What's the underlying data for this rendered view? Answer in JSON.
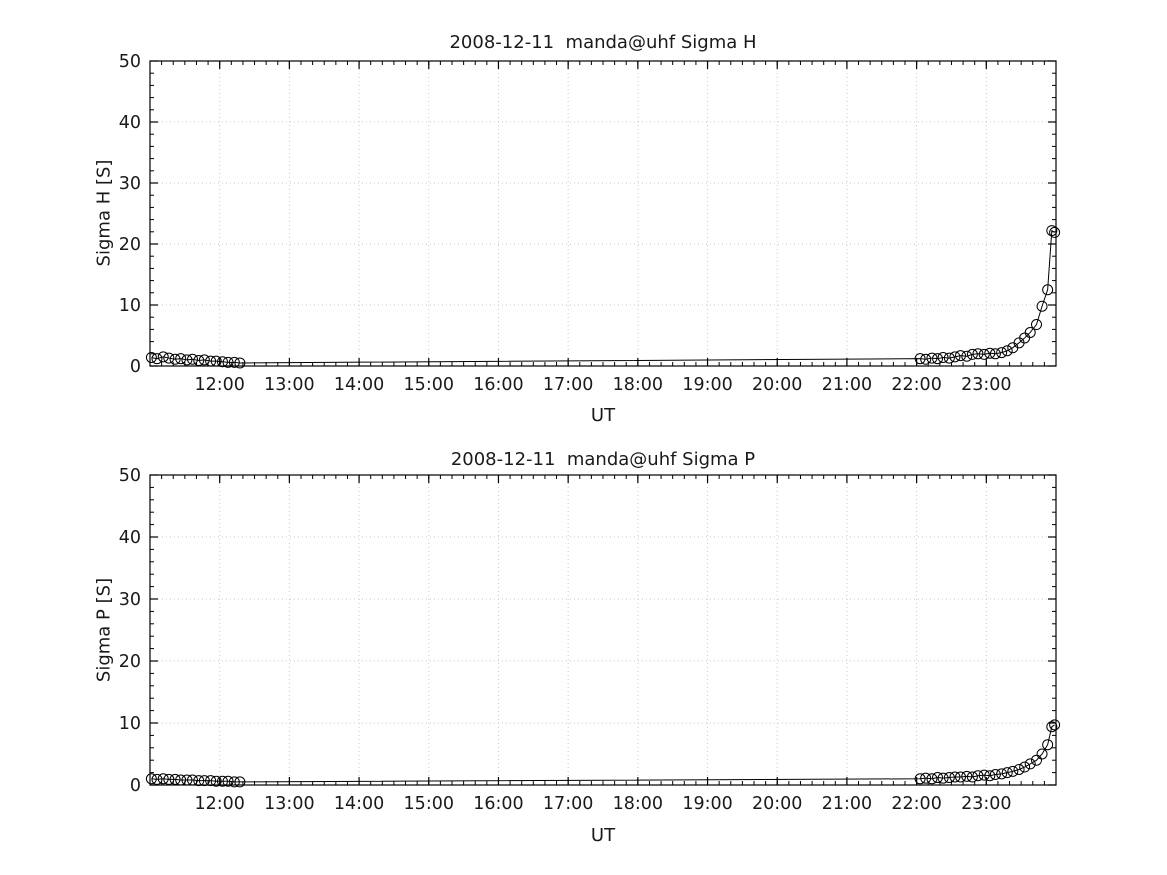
{
  "figure": {
    "background": "#ffffff"
  },
  "chart_data": [
    {
      "type": "line",
      "title": "2008-12-11  manda@uhf Sigma H",
      "xlabel": "UT",
      "ylabel": "Sigma H [S]",
      "xlim": [
        11,
        24
      ],
      "ylim": [
        0,
        50
      ],
      "grid": true,
      "legend_position": "none",
      "marker": "open-circle",
      "colors": {
        "line": "#000000",
        "marker": "#000000",
        "grid": "#c9c9c9",
        "axis": "#000000"
      },
      "xticks": [
        {
          "value": 12,
          "label": "12:00"
        },
        {
          "value": 13,
          "label": "13:00"
        },
        {
          "value": 14,
          "label": "14:00"
        },
        {
          "value": 15,
          "label": "15:00"
        },
        {
          "value": 16,
          "label": "16:00"
        },
        {
          "value": 17,
          "label": "17:00"
        },
        {
          "value": 18,
          "label": "18:00"
        },
        {
          "value": 19,
          "label": "19:00"
        },
        {
          "value": 20,
          "label": "20:00"
        },
        {
          "value": 21,
          "label": "21:00"
        },
        {
          "value": 22,
          "label": "22:00"
        },
        {
          "value": 23,
          "label": "23:00"
        }
      ],
      "yticks": [
        0,
        10,
        20,
        30,
        40,
        50
      ],
      "x_minor_step": 0.16666667,
      "y_minor_step": 2,
      "series": [
        {
          "name": "Sigma H",
          "x": [
            11.02,
            11.1,
            11.19,
            11.27,
            11.36,
            11.44,
            11.53,
            11.61,
            11.7,
            11.78,
            11.87,
            11.95,
            12.04,
            12.12,
            12.21,
            12.29,
            22.05,
            22.13,
            22.22,
            22.3,
            22.38,
            22.47,
            22.55,
            22.63,
            22.72,
            22.8,
            22.88,
            22.97,
            23.05,
            23.13,
            23.22,
            23.3,
            23.38,
            23.47,
            23.55,
            23.63,
            23.72,
            23.8,
            23.88,
            23.94,
            23.98
          ],
          "y": [
            1.4,
            1.2,
            1.5,
            1.3,
            1.1,
            1.2,
            1.0,
            1.1,
            0.9,
            1.0,
            0.8,
            0.8,
            0.7,
            0.6,
            0.6,
            0.5,
            1.2,
            1.1,
            1.3,
            1.2,
            1.4,
            1.3,
            1.5,
            1.7,
            1.6,
            1.9,
            2.0,
            1.9,
            2.1,
            2.0,
            2.2,
            2.5,
            3.0,
            3.8,
            4.6,
            5.5,
            6.8,
            9.8,
            12.5,
            22.2,
            21.9
          ]
        }
      ]
    },
    {
      "type": "line",
      "title": "2008-12-11  manda@uhf Sigma P",
      "xlabel": "UT",
      "ylabel": "Sigma P [S]",
      "xlim": [
        11,
        24
      ],
      "ylim": [
        0,
        50
      ],
      "grid": true,
      "legend_position": "none",
      "marker": "open-circle",
      "colors": {
        "line": "#000000",
        "marker": "#000000",
        "grid": "#c9c9c9",
        "axis": "#000000"
      },
      "xticks": [
        {
          "value": 12,
          "label": "12:00"
        },
        {
          "value": 13,
          "label": "13:00"
        },
        {
          "value": 14,
          "label": "14:00"
        },
        {
          "value": 15,
          "label": "15:00"
        },
        {
          "value": 16,
          "label": "16:00"
        },
        {
          "value": 17,
          "label": "17:00"
        },
        {
          "value": 18,
          "label": "18:00"
        },
        {
          "value": 19,
          "label": "19:00"
        },
        {
          "value": 20,
          "label": "20:00"
        },
        {
          "value": 21,
          "label": "21:00"
        },
        {
          "value": 22,
          "label": "22:00"
        },
        {
          "value": 23,
          "label": "23:00"
        }
      ],
      "yticks": [
        0,
        10,
        20,
        30,
        40,
        50
      ],
      "x_minor_step": 0.16666667,
      "y_minor_step": 2,
      "series": [
        {
          "name": "Sigma P",
          "x": [
            11.02,
            11.1,
            11.19,
            11.27,
            11.36,
            11.44,
            11.53,
            11.61,
            11.7,
            11.78,
            11.87,
            11.95,
            12.04,
            12.12,
            12.21,
            12.29,
            22.05,
            22.13,
            22.22,
            22.3,
            22.38,
            22.47,
            22.55,
            22.63,
            22.72,
            22.8,
            22.88,
            22.97,
            23.05,
            23.13,
            23.22,
            23.3,
            23.38,
            23.47,
            23.55,
            23.63,
            23.72,
            23.8,
            23.88,
            23.94,
            23.98
          ],
          "y": [
            1.0,
            0.9,
            1.0,
            0.9,
            0.9,
            0.8,
            0.8,
            0.8,
            0.7,
            0.7,
            0.7,
            0.6,
            0.6,
            0.6,
            0.5,
            0.5,
            1.0,
            1.1,
            1.0,
            1.2,
            1.1,
            1.2,
            1.3,
            1.3,
            1.4,
            1.3,
            1.5,
            1.6,
            1.5,
            1.7,
            1.8,
            2.0,
            2.2,
            2.5,
            2.9,
            3.4,
            4.0,
            5.0,
            6.5,
            9.4,
            9.7
          ]
        }
      ]
    }
  ]
}
